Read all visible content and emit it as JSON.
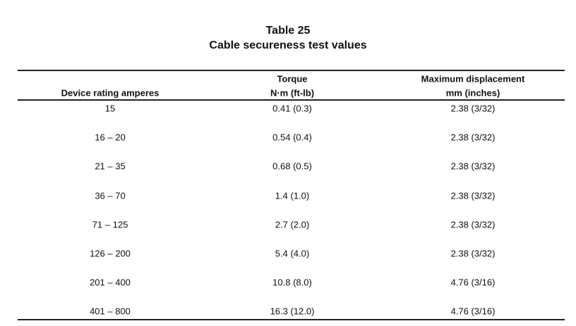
{
  "table": {
    "title": "Table 25",
    "subtitle": "Cable secureness test values",
    "headers": [
      [
        "Device rating amperes"
      ],
      [
        "Torque",
        "N·m (ft-lb)"
      ],
      [
        "Maximum displacement",
        "mm (inches)"
      ]
    ],
    "rows": [
      [
        "15",
        "0.41 (0.3)",
        "2.38 (3/32)"
      ],
      [
        "16 – 20",
        "0.54 (0.4)",
        "2.38 (3/32)"
      ],
      [
        "21 – 35",
        "0.68 (0.5)",
        "2.38 (3/32)"
      ],
      [
        "36 – 70",
        "1.4 (1.0)",
        "2.38 (3/32)"
      ],
      [
        "71 – 125",
        "2.7 (2.0)",
        "2.38 (3/32)"
      ],
      [
        "126 – 200",
        "5.4 (4.0)",
        "2.38 (3/32)"
      ],
      [
        "201 – 400",
        "10.8 (8.0)",
        "4.76 (3/16)"
      ],
      [
        "401 – 800",
        "16.3 (12.0)",
        "4.76 (3/16)"
      ]
    ]
  }
}
